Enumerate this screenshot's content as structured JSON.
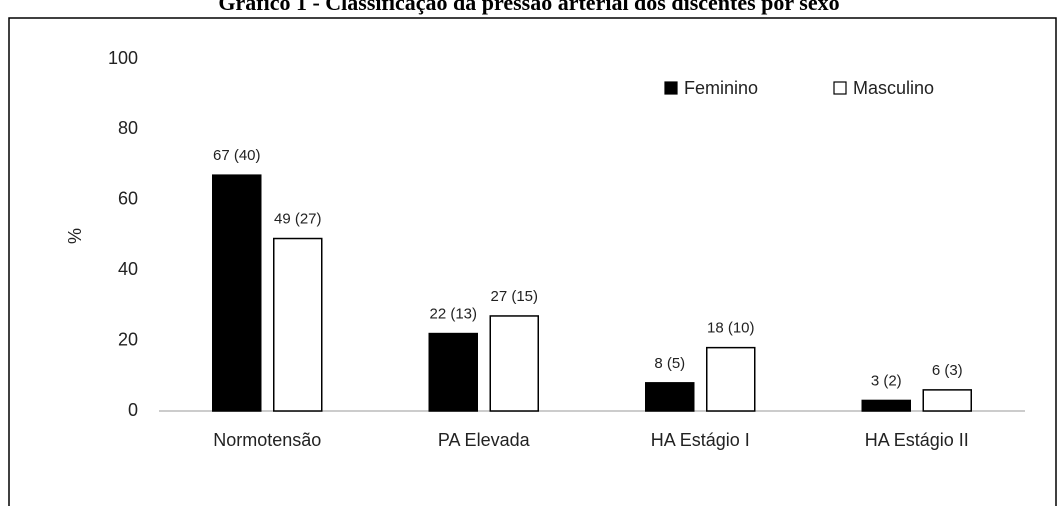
{
  "chart_data": {
    "type": "bar",
    "title": "Gráfico 1 - Classificação da pressão arterial dos discentes por sexo",
    "ylabel": "%",
    "categories": [
      "Normotensão",
      "PA Elevada",
      "HA Estágio I",
      "HA Estágio II"
    ],
    "series": [
      {
        "name": "Feminino",
        "color": "#000000",
        "values": [
          67,
          22,
          8,
          3
        ],
        "value_labels": [
          "67 (40)",
          "22 (13)",
          "8 (5)",
          "3 (2)"
        ]
      },
      {
        "name": "Masculino",
        "color": "#ffffff",
        "values": [
          49,
          27,
          18,
          6
        ],
        "value_labels": [
          "49 (27)",
          "27 (15)",
          "18 (10)",
          "6 (3)"
        ]
      }
    ],
    "ylim": [
      0,
      100
    ],
    "yticks": [
      0,
      20,
      40,
      60,
      80,
      100
    ],
    "grid": false,
    "legend": "upper right"
  }
}
